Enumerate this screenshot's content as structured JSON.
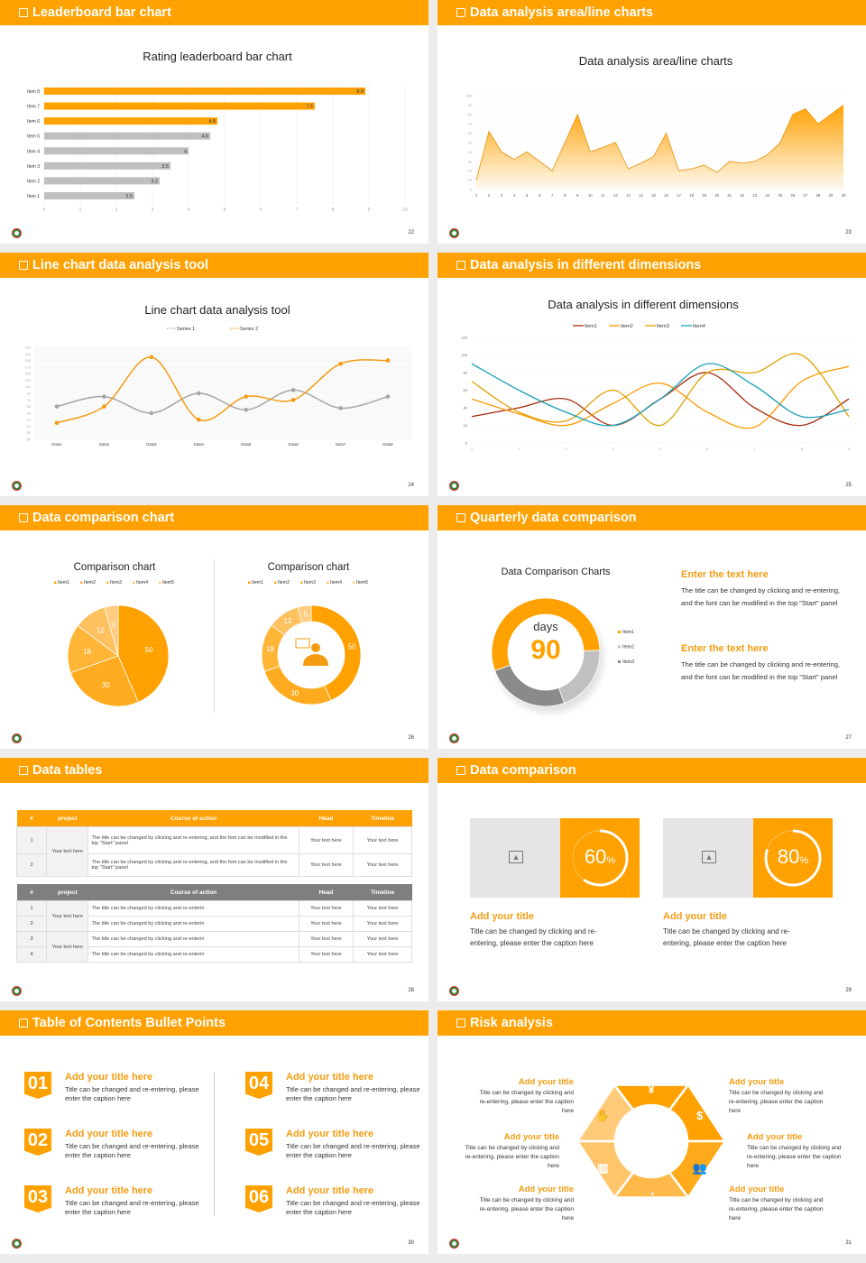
{
  "colors": {
    "accent": "#FFA100",
    "heading_text": "#F39C12",
    "gray_bar": "#BFBFBF"
  },
  "slides": {
    "s22": {
      "header": "Leaderboard bar chart",
      "page": "22"
    },
    "s23": {
      "header": "Data analysis area/line charts",
      "page": "23"
    },
    "s24": {
      "header": "Line chart data analysis tool",
      "page": "24"
    },
    "s25": {
      "header": "Data analysis in different dimensions",
      "page": "25"
    },
    "s26": {
      "header": "Data comparison chart",
      "page": "26",
      "center_icon": "person-with-speech-bubble-icon"
    },
    "s27": {
      "header": "Quarterly data comparison",
      "page": "27",
      "donut_label": "days",
      "donut_value": "90",
      "blocks": [
        {
          "title": "Enter the text here",
          "text": "The title can be changed by clicking and re-entering, and the font can be modified in the top \"Start\" panel"
        },
        {
          "title": "Enter the text here",
          "text": "The title can be changed by clicking and re-entering, and the font can be modified in the top \"Start\" panel"
        }
      ]
    },
    "s28": {
      "header": "Data tables",
      "page": "28",
      "table1": {
        "columns": [
          "#",
          "project",
          "Course of action",
          "Head",
          "Timeline"
        ],
        "header_color": "#FFA100",
        "rows": [
          {
            "num": "1",
            "project": "Your text here",
            "action": "The title can be changed by clicking and re-entering, and the font can be modified in the top \"Start\" panel",
            "head": "Your text here",
            "timeline": "Your text here"
          },
          {
            "num": "2",
            "project": "",
            "action": "The title can be changed by clicking and re-entering, and the font can be modified in the top \"Start\" panel",
            "head": "Your text here",
            "timeline": "Your text here"
          }
        ]
      },
      "table2": {
        "columns": [
          "#",
          "project",
          "Course of action",
          "Head",
          "Timeline"
        ],
        "header_color": "#7F7F7F",
        "rows": [
          {
            "num": "1",
            "project": "Your text here",
            "action": "The title can be changed by clicking and re-enterin",
            "head": "Your text here",
            "timeline": "Your text here"
          },
          {
            "num": "2",
            "project": "",
            "action": "The title can be changed by clicking and re-enterin",
            "head": "Your text here",
            "timeline": "Your text here"
          },
          {
            "num": "3",
            "project": "Your text here",
            "action": "The title can be changed by clicking and re-enterin",
            "head": "Your text here",
            "timeline": "Your text here"
          },
          {
            "num": "4",
            "project": "",
            "action": "The title can be changed by clicking and re-enterin",
            "head": "Your text here",
            "timeline": "Your text here"
          }
        ]
      }
    },
    "s29": {
      "header": "Data comparison",
      "page": "29",
      "cards": [
        {
          "percent": 60,
          "value": "60",
          "unit": "%",
          "title": "Add your title",
          "text": "Title can be changed by clicking and re-entering, please enter the caption here",
          "image_icon": "image-add-icon"
        },
        {
          "percent": 80,
          "value": "80",
          "unit": "%",
          "title": "Add your title",
          "text": "Title can be changed by clicking and re-entering, please enter the caption here",
          "image_icon": "image-add-icon"
        }
      ]
    },
    "s30": {
      "header": "Table of Contents Bullet Points",
      "page": "30",
      "items": [
        {
          "num": "01",
          "title": "Add your title here",
          "text": "Title can be changed and re-entering, please enter the caption here"
        },
        {
          "num": "02",
          "title": "Add your title here",
          "text": "Title can be changed and re-entering, please enter the caption here"
        },
        {
          "num": "03",
          "title": "Add your title here",
          "text": "Title can be changed and re-entering, please enter the caption here"
        },
        {
          "num": "04",
          "title": "Add your title here",
          "text": "Title can be changed and re-entering, please enter the caption here"
        },
        {
          "num": "05",
          "title": "Add your title here",
          "text": "Title can be changed and re-entering, please enter the caption here"
        },
        {
          "num": "06",
          "title": "Add your title here",
          "text": "Title can be changed and re-entering, please enter the caption here"
        }
      ]
    },
    "s31": {
      "header": "Risk analysis",
      "page": "31",
      "items": [
        {
          "title": "Add your title",
          "text": "Title can be changed by clicking and re-entering, please enter the caption here"
        },
        {
          "title": "Add your title",
          "text": "Title can be changed by clicking and re-entering, please enter the caption here"
        },
        {
          "title": "Add your title",
          "text": "Title can be changed by clicking and re-entering, please enter the caption here"
        },
        {
          "title": "Add your title",
          "text": "Title can be changed by clicking and re-entering, please enter the caption here"
        },
        {
          "title": "Add your title",
          "text": "Title can be changed by clicking and re-entering, please enter the caption here"
        },
        {
          "title": "Add your title",
          "text": "Title can be changed by clicking and re-entering, please enter the caption here"
        }
      ],
      "icons": [
        "money-bag-yen-icon",
        "coins-dollar-icon",
        "people-icon",
        "pie-chart-icon",
        "buildings-icon",
        "hand-yen-icon"
      ]
    }
  },
  "chart_data": [
    {
      "type": "bar",
      "orientation": "horizontal",
      "title": "Rating leaderboard bar chart",
      "categories": [
        "Item 1",
        "Item 2",
        "Item 3",
        "Item 4",
        "Item 5",
        "Item 6",
        "Item 7",
        "Item 8"
      ],
      "values": [
        2.5,
        3.2,
        3.5,
        4,
        4.6,
        4.8,
        7.5,
        8.9
      ],
      "bar_colors": [
        "#BFBFBF",
        "#BFBFBF",
        "#BFBFBF",
        "#BFBFBF",
        "#BFBFBF",
        "#FFA100",
        "#FFA100",
        "#FFA100"
      ],
      "xlim": [
        0,
        10
      ],
      "xticks": [
        "0",
        "1",
        "2",
        "3",
        "4",
        "5",
        "6",
        "7",
        "8",
        "9",
        "10"
      ],
      "grid": true
    },
    {
      "type": "area",
      "title": "Data analysis area/line charts",
      "x": [
        1,
        2,
        3,
        4,
        5,
        6,
        7,
        8,
        9,
        10,
        11,
        12,
        13,
        14,
        15,
        16,
        17,
        18,
        19,
        20,
        21,
        22,
        23,
        24,
        25,
        26,
        27,
        28,
        29,
        30
      ],
      "values": [
        10,
        62,
        40,
        32,
        40,
        30,
        20,
        50,
        80,
        40,
        45,
        50,
        22,
        28,
        35,
        60,
        20,
        22,
        26,
        18,
        30,
        28,
        30,
        37,
        50,
        80,
        86,
        70,
        80,
        90
      ],
      "ylim": [
        0,
        100
      ],
      "yticks": [
        "0",
        "10",
        "20",
        "30",
        "40",
        "50",
        "60",
        "70",
        "80",
        "90",
        "100"
      ],
      "color": "#FFA100"
    },
    {
      "type": "line",
      "title": "Line chart data analysis tool",
      "legend": "top",
      "categories": [
        "Data1",
        "Data2",
        "Data3",
        "Data4",
        "Data5",
        "Data6",
        "Data7",
        "Data8"
      ],
      "series": [
        {
          "name": "Series 1",
          "values": [
            50,
            80,
            30,
            90,
            40,
            100,
            45,
            80
          ],
          "color": "#A6A6A6"
        },
        {
          "name": "Series 2",
          "values": [
            0,
            50,
            200,
            10,
            80,
            70,
            180,
            190
          ],
          "color": "#F39C12"
        }
      ],
      "ylim": [
        -50,
        230
      ],
      "yticks": [
        "-50",
        "-30",
        "-10",
        "10",
        "30",
        "50",
        "70",
        "90",
        "110",
        "130",
        "150",
        "170",
        "190",
        "210",
        "230"
      ]
    },
    {
      "type": "line",
      "title": "Data analysis in different dimensions",
      "legend": "top",
      "categories": [
        "1",
        "2",
        "3",
        "4",
        "5",
        "6",
        "7",
        "8",
        "9"
      ],
      "series": [
        {
          "name": "Item1",
          "values": [
            30,
            40,
            50,
            20,
            50,
            80,
            40,
            20,
            50
          ],
          "color": "#A52A0A"
        },
        {
          "name": "Item2",
          "values": [
            50,
            33,
            20,
            45,
            68,
            35,
            18,
            70,
            87
          ],
          "color": "#FF9800"
        },
        {
          "name": "Item3",
          "values": [
            70,
            35,
            25,
            60,
            20,
            80,
            80,
            100,
            30
          ],
          "color": "#E0A000"
        },
        {
          "name": "Item4",
          "values": [
            90,
            60,
            35,
            20,
            50,
            90,
            65,
            30,
            38
          ],
          "color": "#1BA1B8"
        }
      ],
      "ylim": [
        0,
        120
      ],
      "yticks": [
        "0",
        "20",
        "40",
        "60",
        "80",
        "100",
        "120"
      ]
    },
    {
      "type": "pie",
      "title": "Comparison chart",
      "legend": "top",
      "categories": [
        "Item1",
        "Item2",
        "Item3",
        "Item4",
        "Item5"
      ],
      "values": [
        50,
        30,
        18,
        12,
        5
      ],
      "colors": [
        "#FFA100",
        "#FFAB1F",
        "#FFB536",
        "#FFC060",
        "#FFCC80"
      ]
    },
    {
      "type": "pie",
      "variant": "donut",
      "title": "Comparison chart",
      "legend": "top",
      "categories": [
        "Item1",
        "Item2",
        "Item3",
        "Item4",
        "Item5"
      ],
      "values": [
        50,
        30,
        18,
        12,
        5
      ],
      "colors": [
        "#FFA100",
        "#FFAB1F",
        "#FFB536",
        "#FFC060",
        "#FFCC80"
      ]
    },
    {
      "type": "pie",
      "variant": "donut",
      "title": "Data Comparison Charts",
      "legend": "right",
      "categories": [
        "Item1",
        "Item2",
        "Item3"
      ],
      "values": [
        55,
        20,
        25
      ],
      "colors": [
        "#FFA100",
        "#C0C0C0",
        "#8A8A8A"
      ]
    }
  ]
}
